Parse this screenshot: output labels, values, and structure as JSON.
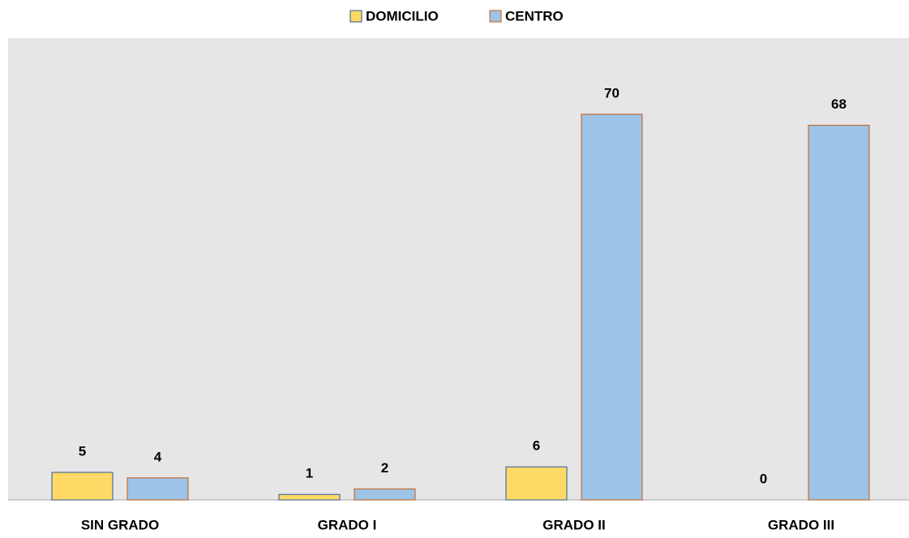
{
  "chart_data": {
    "type": "bar",
    "categories": [
      "SIN GRADO",
      "GRADO I",
      "GRADO II",
      "GRADO III"
    ],
    "series": [
      {
        "name": "DOMICILIO",
        "color": "#ffd966",
        "edge": "#2f5597",
        "values": [
          5,
          1,
          6,
          0
        ]
      },
      {
        "name": "CENTRO",
        "color": "#9dc3e6",
        "edge": "#c55a11",
        "values": [
          4,
          2,
          70,
          68
        ]
      }
    ],
    "legend": "top"
  }
}
